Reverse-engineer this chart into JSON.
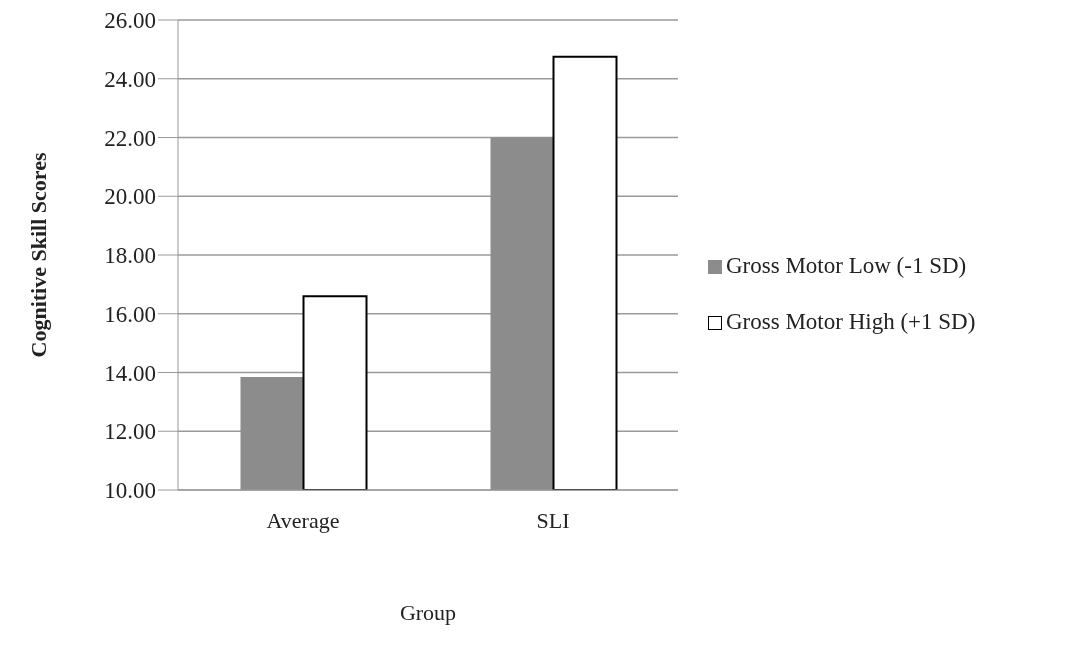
{
  "chart_data": {
    "type": "bar",
    "xlabel": "Group",
    "ylabel": "Cognitive Skill Scores",
    "categories": [
      "Average",
      "SLI"
    ],
    "series": [
      {
        "name": "Gross Motor Low (-1 SD)",
        "color": "#8c8c8c",
        "values": [
          13.85,
          22.0
        ]
      },
      {
        "name": "Gross Motor High (+1 SD)",
        "color": "#ffffff",
        "values": [
          16.6,
          24.75
        ]
      }
    ],
    "ylim": [
      10,
      26
    ],
    "yticks": [
      {
        "value": 10,
        "label": "10.00"
      },
      {
        "value": 12,
        "label": "12.00"
      },
      {
        "value": 14,
        "label": "14.00"
      },
      {
        "value": 16,
        "label": "16.00"
      },
      {
        "value": 18,
        "label": "18.00"
      },
      {
        "value": 20,
        "label": "20.00"
      },
      {
        "value": 22,
        "label": "22.00"
      },
      {
        "value": 24,
        "label": "24.00"
      },
      {
        "value": 26,
        "label": "26.00"
      }
    ],
    "grid": "y",
    "legend": "right"
  }
}
